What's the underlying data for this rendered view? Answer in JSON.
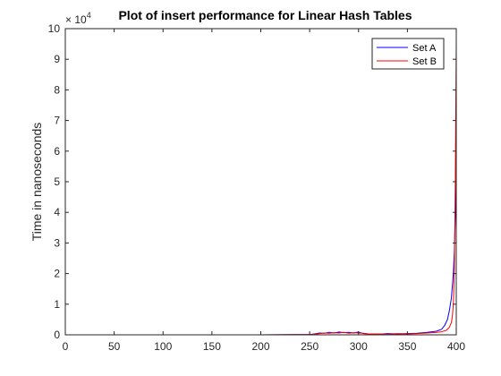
{
  "chart_data": {
    "type": "line",
    "title": "Plot of insert performance for Linear Hash Tables",
    "xlabel": "",
    "ylabel": "Time in nanoseconds",
    "y_multiplier_base": "× 10",
    "y_multiplier_exponent": "4",
    "xlim": [
      0,
      400
    ],
    "ylim": [
      0,
      100000
    ],
    "x_ticks": [
      "0",
      "50",
      "100",
      "150",
      "200",
      "250",
      "300",
      "350",
      "400"
    ],
    "y_ticks": [
      "0",
      "1",
      "2",
      "3",
      "4",
      "5",
      "6",
      "7",
      "8",
      "9",
      "10"
    ],
    "legend_position": "top-right",
    "grid": false,
    "series": [
      {
        "name": "Set A",
        "color": "#0000ff",
        "points": [
          [
            0,
            0
          ],
          [
            50,
            0
          ],
          [
            100,
            0
          ],
          [
            150,
            0
          ],
          [
            200,
            0
          ],
          [
            250,
            100
          ],
          [
            255,
            300
          ],
          [
            260,
            600
          ],
          [
            265,
            500
          ],
          [
            270,
            800
          ],
          [
            275,
            600
          ],
          [
            280,
            900
          ],
          [
            285,
            700
          ],
          [
            290,
            800
          ],
          [
            295,
            600
          ],
          [
            300,
            900
          ],
          [
            305,
            400
          ],
          [
            310,
            300
          ],
          [
            320,
            200
          ],
          [
            330,
            400
          ],
          [
            340,
            300
          ],
          [
            350,
            400
          ],
          [
            360,
            500
          ],
          [
            370,
            800
          ],
          [
            375,
            1000
          ],
          [
            380,
            1200
          ],
          [
            385,
            1800
          ],
          [
            388,
            3000
          ],
          [
            391,
            5000
          ],
          [
            393,
            8000
          ],
          [
            395,
            12000
          ],
          [
            397,
            20000
          ],
          [
            398,
            27000
          ],
          [
            399,
            38000
          ],
          [
            400,
            53000
          ]
        ]
      },
      {
        "name": "Set B",
        "color": "#ff0000",
        "points": [
          [
            0,
            0
          ],
          [
            50,
            0
          ],
          [
            100,
            0
          ],
          [
            150,
            0
          ],
          [
            200,
            0
          ],
          [
            250,
            100
          ],
          [
            255,
            200
          ],
          [
            260,
            400
          ],
          [
            265,
            600
          ],
          [
            270,
            500
          ],
          [
            275,
            700
          ],
          [
            280,
            600
          ],
          [
            285,
            800
          ],
          [
            290,
            500
          ],
          [
            295,
            700
          ],
          [
            300,
            600
          ],
          [
            305,
            500
          ],
          [
            310,
            300
          ],
          [
            320,
            300
          ],
          [
            330,
            200
          ],
          [
            340,
            400
          ],
          [
            350,
            300
          ],
          [
            360,
            400
          ],
          [
            370,
            600
          ],
          [
            380,
            800
          ],
          [
            385,
            1000
          ],
          [
            390,
            1500
          ],
          [
            393,
            2500
          ],
          [
            395,
            4000
          ],
          [
            396,
            6000
          ],
          [
            397,
            10000
          ],
          [
            398,
            20000
          ],
          [
            399,
            50000
          ],
          [
            400,
            94500
          ]
        ]
      }
    ]
  }
}
